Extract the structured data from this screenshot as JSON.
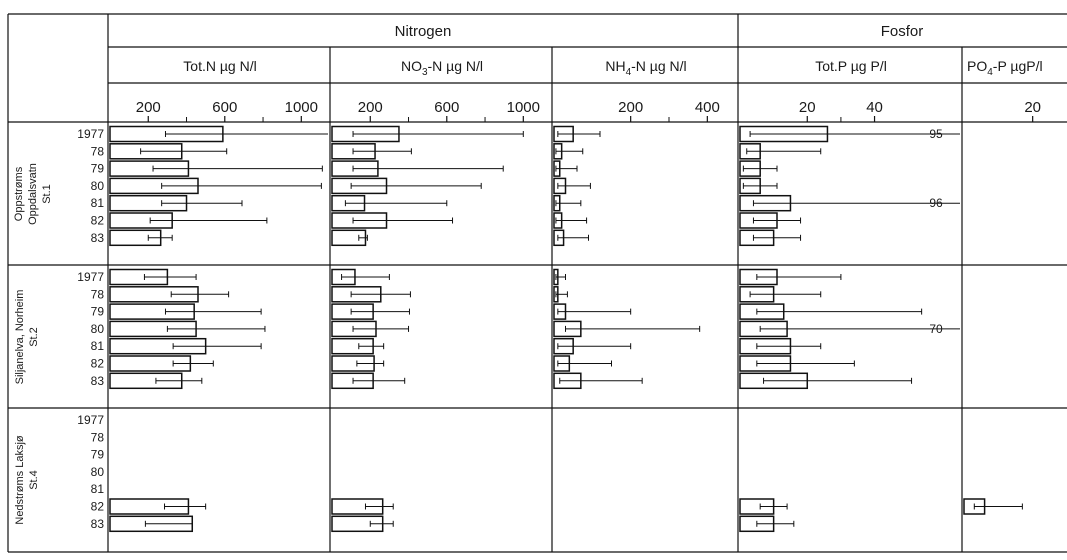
{
  "header": {
    "groups": [
      {
        "key": "nitrogen",
        "label": "Nitrogen"
      },
      {
        "key": "fosfor",
        "label": "Fosfor"
      }
    ]
  },
  "panels": [
    {
      "key": "totn",
      "label": "Tot.N µg N/l",
      "label_parts": [
        {
          "t": "Tot.N µg N/l"
        }
      ],
      "ticks": [
        200,
        600,
        1000
      ],
      "xlim": [
        0,
        1150
      ]
    },
    {
      "key": "no3",
      "label": "NO3-N µg N/l",
      "label_parts": [
        {
          "t": "NO"
        },
        {
          "t": "3",
          "sub": true
        },
        {
          "t": "-N µg N/l"
        }
      ],
      "ticks": [
        200,
        600,
        1000
      ],
      "xlim": [
        0,
        1150
      ]
    },
    {
      "key": "nh4",
      "label": "NH4-N µg N/l",
      "label_parts": [
        {
          "t": "NH"
        },
        {
          "t": "4",
          "sub": true
        },
        {
          "t": "-N µg N/l"
        }
      ],
      "ticks": [
        200,
        400
      ],
      "xlim": [
        0,
        480
      ]
    },
    {
      "key": "totp",
      "label": "Tot.P µg P/l",
      "label_parts": [
        {
          "t": "Tot.P µg P/l"
        }
      ],
      "ticks": [
        20,
        40
      ],
      "xlim": [
        0,
        66
      ]
    },
    {
      "key": "po4",
      "label": "PO4-P µgP/l",
      "label_parts": [
        {
          "t": "PO"
        },
        {
          "t": "4",
          "sub": true
        },
        {
          "t": "-P µgP/l"
        }
      ],
      "ticks": [
        20
      ],
      "xlim": [
        0,
        30
      ]
    }
  ],
  "stations": [
    {
      "key": "st1",
      "label_lines": [
        "Oppstrøms",
        "Oppdalsvatn",
        "St.1"
      ]
    },
    {
      "key": "st2",
      "label_lines": [
        "Siljanelva, Norheim",
        "St.2"
      ]
    },
    {
      "key": "st4",
      "label_lines": [
        "Nedstrøms Laksjø",
        "St.4"
      ]
    }
  ],
  "years": [
    "1977",
    "78",
    "79",
    "80",
    "81",
    "82",
    "83"
  ],
  "chart_data": {
    "type": "bar",
    "orientation": "horizontal",
    "value_kind": "mean with min–max range",
    "categories": [
      "1977",
      "78",
      "79",
      "80",
      "81",
      "82",
      "83"
    ],
    "series": [
      {
        "panel": "totn",
        "station": "st1",
        "values": [
          {
            "year": "1977",
            "mean": 590,
            "min": 290,
            "max": 1150
          },
          {
            "year": "78",
            "mean": 375,
            "min": 160,
            "max": 610
          },
          {
            "year": "79",
            "mean": 410,
            "min": 225,
            "max": 1110
          },
          {
            "year": "80",
            "mean": 460,
            "min": 270,
            "max": 1105
          },
          {
            "year": "81",
            "mean": 400,
            "min": 270,
            "max": 690
          },
          {
            "year": "82",
            "mean": 325,
            "min": 210,
            "max": 820
          },
          {
            "year": "83",
            "mean": 265,
            "min": 200,
            "max": 325
          }
        ]
      },
      {
        "panel": "totn",
        "station": "st2",
        "values": [
          {
            "year": "1977",
            "mean": 300,
            "min": 180,
            "max": 450
          },
          {
            "year": "78",
            "mean": 460,
            "min": 320,
            "max": 620
          },
          {
            "year": "79",
            "mean": 440,
            "min": 290,
            "max": 790
          },
          {
            "year": "80",
            "mean": 450,
            "min": 300,
            "max": 810
          },
          {
            "year": "81",
            "mean": 500,
            "min": 330,
            "max": 790
          },
          {
            "year": "82",
            "mean": 420,
            "min": 330,
            "max": 540
          },
          {
            "year": "83",
            "mean": 375,
            "min": 240,
            "max": 480
          }
        ]
      },
      {
        "panel": "totn",
        "station": "st4",
        "values": [
          {
            "year": "82",
            "mean": 410,
            "min": 285,
            "max": 500
          },
          {
            "year": "83",
            "mean": 430,
            "min": 185,
            "max": 430
          }
        ]
      },
      {
        "panel": "no3",
        "station": "st1",
        "values": [
          {
            "year": "1977",
            "mean": 350,
            "min": 110,
            "max": 1000
          },
          {
            "year": "78",
            "mean": 225,
            "min": 110,
            "max": 415
          },
          {
            "year": "79",
            "mean": 240,
            "min": 110,
            "max": 895
          },
          {
            "year": "80",
            "mean": 285,
            "min": 100,
            "max": 780
          },
          {
            "year": "81",
            "mean": 170,
            "min": 70,
            "max": 600
          },
          {
            "year": "82",
            "mean": 285,
            "min": 110,
            "max": 630
          },
          {
            "year": "83",
            "mean": 175,
            "min": 140,
            "max": 185
          }
        ]
      },
      {
        "panel": "no3",
        "station": "st2",
        "values": [
          {
            "year": "1977",
            "mean": 120,
            "min": 50,
            "max": 300
          },
          {
            "year": "78",
            "mean": 255,
            "min": 100,
            "max": 410
          },
          {
            "year": "79",
            "mean": 215,
            "min": 100,
            "max": 405
          },
          {
            "year": "80",
            "mean": 230,
            "min": 110,
            "max": 400
          },
          {
            "year": "81",
            "mean": 215,
            "min": 140,
            "max": 270
          },
          {
            "year": "82",
            "mean": 220,
            "min": 130,
            "max": 270
          },
          {
            "year": "83",
            "mean": 215,
            "min": 110,
            "max": 380
          }
        ]
      },
      {
        "panel": "no3",
        "station": "st4",
        "values": [
          {
            "year": "82",
            "mean": 265,
            "min": 175,
            "max": 320
          },
          {
            "year": "83",
            "mean": 265,
            "min": 200,
            "max": 320
          }
        ]
      },
      {
        "panel": "nh4",
        "station": "st1",
        "values": [
          {
            "year": "1977",
            "mean": 50,
            "min": 10,
            "max": 120
          },
          {
            "year": "78",
            "mean": 20,
            "min": 5,
            "max": 75
          },
          {
            "year": "79",
            "mean": 15,
            "min": 5,
            "max": 60
          },
          {
            "year": "80",
            "mean": 30,
            "min": 10,
            "max": 95
          },
          {
            "year": "81",
            "mean": 15,
            "min": 5,
            "max": 70
          },
          {
            "year": "82",
            "mean": 20,
            "min": 5,
            "max": 85
          },
          {
            "year": "83",
            "mean": 25,
            "min": 10,
            "max": 90
          }
        ]
      },
      {
        "panel": "nh4",
        "station": "st2",
        "values": [
          {
            "year": "1977",
            "mean": 10,
            "min": 5,
            "max": 30
          },
          {
            "year": "78",
            "mean": 10,
            "min": 5,
            "max": 35
          },
          {
            "year": "79",
            "mean": 30,
            "min": 10,
            "max": 200
          },
          {
            "year": "80",
            "mean": 70,
            "min": 30,
            "max": 380
          },
          {
            "year": "81",
            "mean": 50,
            "min": 10,
            "max": 200
          },
          {
            "year": "82",
            "mean": 40,
            "min": 10,
            "max": 150
          },
          {
            "year": "83",
            "mean": 70,
            "min": 15,
            "max": 230
          }
        ]
      },
      {
        "panel": "totp",
        "station": "st1",
        "values": [
          {
            "year": "1977",
            "mean": 26,
            "min": 3,
            "max": 95,
            "label": "95"
          },
          {
            "year": "78",
            "mean": 6,
            "min": 2,
            "max": 24
          },
          {
            "year": "79",
            "mean": 6,
            "min": 1,
            "max": 11
          },
          {
            "year": "80",
            "mean": 6,
            "min": 1,
            "max": 11
          },
          {
            "year": "81",
            "mean": 15,
            "min": 4,
            "max": 96,
            "label": "96"
          },
          {
            "year": "82",
            "mean": 11,
            "min": 4,
            "max": 18
          },
          {
            "year": "83",
            "mean": 10,
            "min": 4,
            "max": 18
          }
        ]
      },
      {
        "panel": "totp",
        "station": "st2",
        "values": [
          {
            "year": "1977",
            "mean": 11,
            "min": 5,
            "max": 30
          },
          {
            "year": "78",
            "mean": 10,
            "min": 3,
            "max": 24
          },
          {
            "year": "79",
            "mean": 13,
            "min": 5,
            "max": 54
          },
          {
            "year": "80",
            "mean": 14,
            "min": 6,
            "max": 70,
            "label": "70"
          },
          {
            "year": "81",
            "mean": 15,
            "min": 5,
            "max": 24
          },
          {
            "year": "82",
            "mean": 15,
            "min": 5,
            "max": 34
          },
          {
            "year": "83",
            "mean": 20,
            "min": 7,
            "max": 51
          }
        ]
      },
      {
        "panel": "totp",
        "station": "st4",
        "values": [
          {
            "year": "82",
            "mean": 10,
            "min": 6,
            "max": 14
          },
          {
            "year": "83",
            "mean": 10,
            "min": 5,
            "max": 16
          }
        ]
      },
      {
        "panel": "po4",
        "station": "st4",
        "values": [
          {
            "year": "82",
            "mean": 6,
            "min": 3,
            "max": 17
          }
        ]
      }
    ]
  }
}
